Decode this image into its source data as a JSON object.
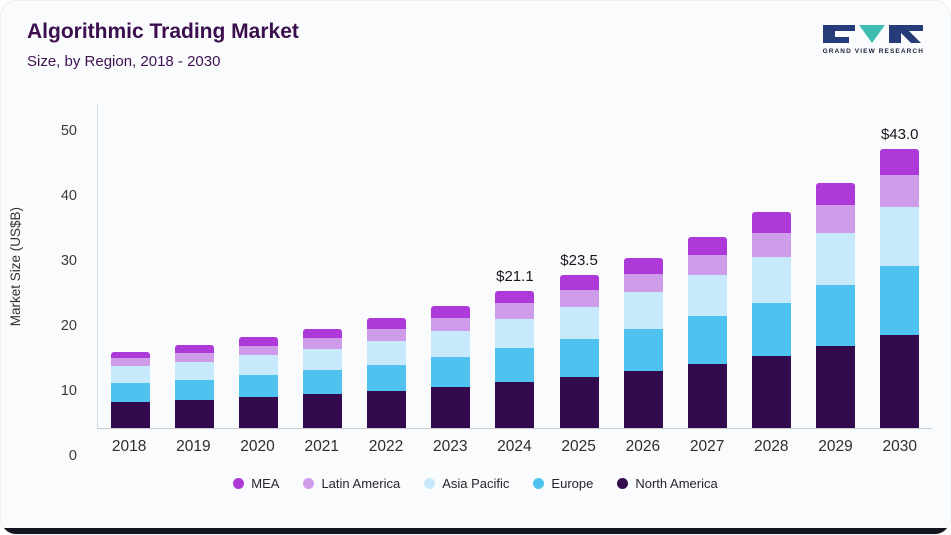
{
  "header": {
    "title": "Algorithmic Trading Market",
    "subtitle": "Size, by Region, 2018 - 2030",
    "logo_caption": "GRAND VIEW RESEARCH"
  },
  "colors": {
    "title_text": "#3b0e4e",
    "logo_navy": "#253c78",
    "logo_teal": "#3fbdb3",
    "footer_bar": "#14141f"
  },
  "chart_data": {
    "type": "bar",
    "stacked": true,
    "title": "Algorithmic Trading Market",
    "subtitle": "Size, by Region, 2018 - 2030",
    "ylabel": "Market Size (US$B)",
    "xlabel": "",
    "ylim": [
      0,
      50
    ],
    "yticks": [
      0,
      10,
      20,
      30,
      40,
      50
    ],
    "grid": false,
    "legend_position": "bottom",
    "categories": [
      "2018",
      "2019",
      "2020",
      "2021",
      "2022",
      "2023",
      "2024",
      "2025",
      "2026",
      "2027",
      "2028",
      "2029",
      "2030"
    ],
    "series": [
      {
        "name": "North America",
        "color": "#330a4e",
        "values": [
          4.0,
          4.3,
          4.8,
          5.2,
          5.7,
          6.3,
          7.1,
          7.9,
          8.8,
          9.9,
          11.1,
          12.6,
          14.3
        ]
      },
      {
        "name": "Europe",
        "color": "#4fc2ef",
        "values": [
          2.9,
          3.1,
          3.4,
          3.7,
          4.1,
          4.6,
          5.2,
          5.8,
          6.5,
          7.3,
          8.2,
          9.4,
          10.6
        ]
      },
      {
        "name": "Asia Pacific",
        "color": "#c8e9fb",
        "values": [
          2.6,
          2.8,
          3.0,
          3.3,
          3.6,
          4.0,
          4.5,
          5.0,
          5.6,
          6.3,
          7.1,
          8.1,
          9.2
        ]
      },
      {
        "name": "Latin America",
        "color": "#cf9ce9",
        "values": [
          1.3,
          1.4,
          1.5,
          1.7,
          1.9,
          2.1,
          2.4,
          2.6,
          2.9,
          3.2,
          3.7,
          4.2,
          4.8
        ]
      },
      {
        "name": "MEA",
        "color": "#ad39d8",
        "values": [
          1.0,
          1.2,
          1.3,
          1.4,
          1.6,
          1.8,
          1.9,
          2.2,
          2.4,
          2.7,
          3.1,
          3.5,
          4.1
        ]
      }
    ],
    "totals": [
      11.8,
      12.8,
      14.0,
      15.3,
      16.9,
      18.8,
      21.1,
      23.5,
      26.2,
      29.4,
      33.2,
      37.8,
      43.0
    ],
    "value_labels": {
      "2024": "$21.1",
      "2025": "$23.5",
      "2030": "$43.0"
    },
    "legend_order": [
      "MEA",
      "Latin America",
      "Asia Pacific",
      "Europe",
      "North America"
    ]
  }
}
